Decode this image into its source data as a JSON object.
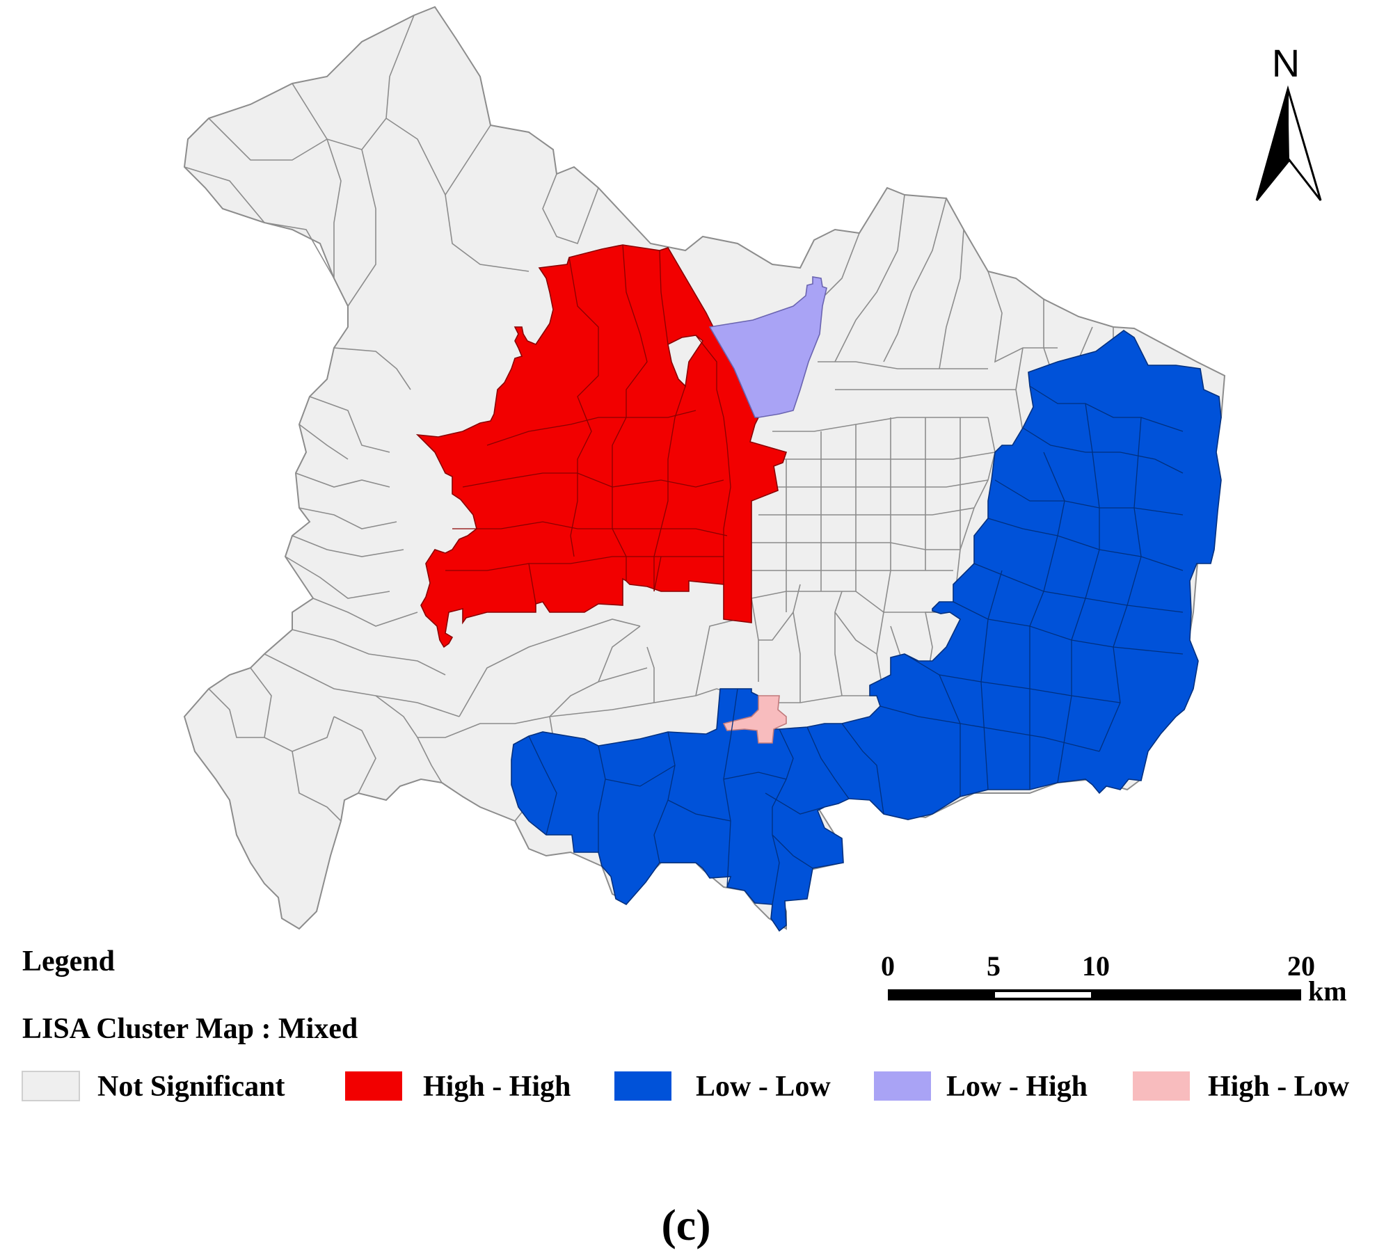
{
  "north_arrow": {
    "label": "N",
    "icon": "north-arrow-icon"
  },
  "legend": {
    "heading": "Legend",
    "title": "LISA Cluster Map : Mixed",
    "items": [
      {
        "label": "Not Significant",
        "color": "#efefef"
      },
      {
        "label": "High - High",
        "color": "#f20000"
      },
      {
        "label": "Low - Low",
        "color": "#0052d9"
      },
      {
        "label": "Low - High",
        "color": "#a9a3f5"
      },
      {
        "label": "High - Low",
        "color": "#f8bcbe"
      }
    ]
  },
  "scale_bar": {
    "ticks": [
      "0",
      "5",
      "10",
      "20"
    ],
    "unit": "km"
  },
  "caption": "(c)",
  "colors": {
    "boundary": "#808080",
    "background": "#ffffff"
  }
}
